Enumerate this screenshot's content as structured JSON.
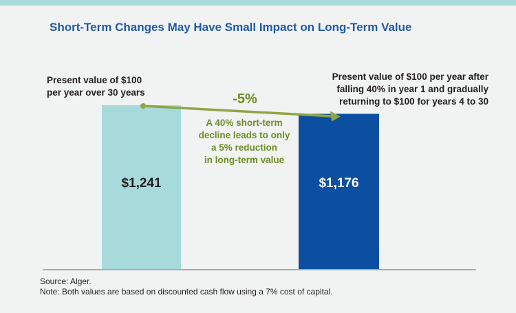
{
  "colors": {
    "bar_present": "#a7dadb",
    "bar_declined": "#0c4fa1",
    "arrow": "#8fa544",
    "title": "#1f5aa6",
    "accent_green": "#6b8e23",
    "strip": "#a7dadb"
  },
  "chart_data": {
    "type": "bar",
    "title": "Short-Term Changes May Have Small Impact on Long-Term Value",
    "categories": [
      "Present value of $100 per year over 30 years",
      "Present value of $100 per year after falling 40% in year 1 and gradually returning to $100 for years 4 to 30"
    ],
    "values": [
      1241,
      1176
    ],
    "data_labels": [
      "$1,241",
      "$1,176"
    ],
    "xlabel": "",
    "ylabel": "",
    "ylim": [
      0,
      1241
    ],
    "grid": false,
    "annotations": {
      "change": "-5%",
      "note": [
        "A 40% short-term",
        "decline leads to only",
        "a  5% reduction",
        "in long-term value"
      ]
    }
  },
  "labels": {
    "left": [
      "Present value of $100",
      "per year over 30 years"
    ],
    "right": [
      "Present value of $100 per year after",
      "falling 40% in year 1 and gradually",
      "returning to $100 for years 4 to 30"
    ]
  },
  "footer": {
    "source": "Source: Alger.",
    "note": "Note: Both values are based on discounted cash flow using a 7% cost of capital."
  }
}
